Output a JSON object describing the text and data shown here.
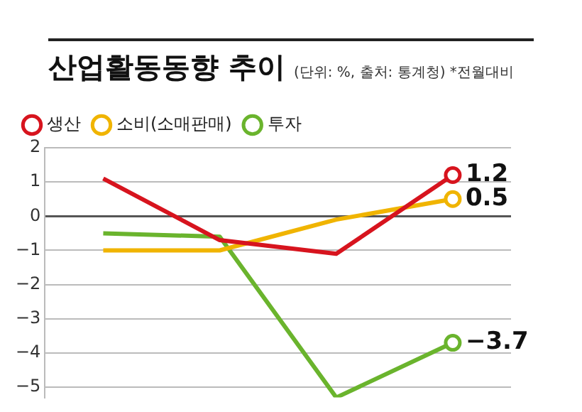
{
  "chart_data": {
    "type": "line",
    "title": "산업활동동향 추이",
    "subtitle": "(단위: %, 출처: 통계청) *전월대비",
    "categories": [
      null,
      null,
      null,
      null
    ],
    "series": [
      {
        "name": "생산",
        "color": "#d7141e",
        "values": [
          1.1,
          -0.7,
          -1.1,
          1.2
        ],
        "value_labels": [
          null,
          null,
          null,
          "1.2"
        ]
      },
      {
        "name": "소비(소매판매)",
        "color": "#f0b400",
        "values": [
          -1.0,
          -1.0,
          -0.1,
          0.5
        ],
        "value_labels": [
          null,
          null,
          null,
          "0.5"
        ]
      },
      {
        "name": "투자",
        "color": "#6ab42d",
        "values": [
          -0.5,
          -0.6,
          -5.3,
          -3.7
        ],
        "value_labels": [
          null,
          null,
          null,
          "−3.7"
        ]
      }
    ],
    "ylim": [
      -5.3,
      2
    ],
    "yticks": [
      2,
      1,
      0,
      -1,
      -2,
      -3,
      -4,
      -5
    ],
    "grid": "y",
    "legend": "top",
    "tick_labels": "y",
    "line_style": "solid"
  }
}
